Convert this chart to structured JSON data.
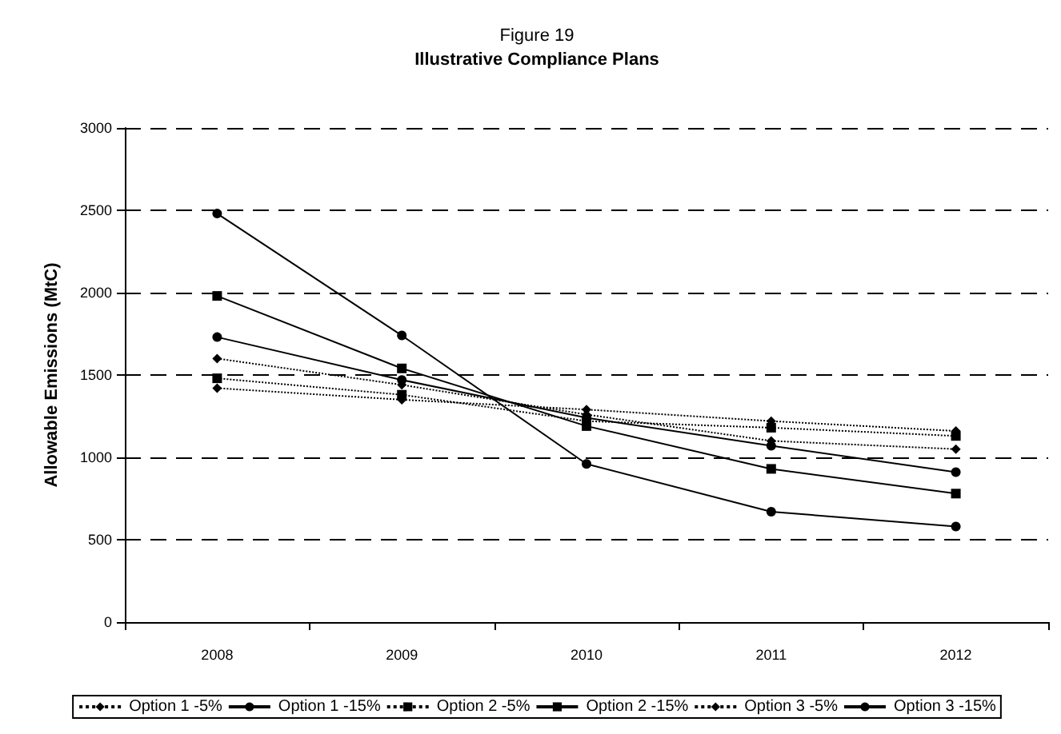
{
  "chart_data": {
    "type": "line",
    "title": "Figure 19",
    "subtitle": "Illustrative Compliance Plans",
    "ylabel": "Allowable Emissions (MtC)",
    "categories": [
      "2008",
      "2009",
      "2010",
      "2011",
      "2012"
    ],
    "series": [
      {
        "name": "Option 1 -5%",
        "color": "#000000",
        "marker": "diamond",
        "line_style": "dotted",
        "values": [
          1420,
          1350,
          1290,
          1220,
          1160
        ]
      },
      {
        "name": "Option 1 -15%",
        "color": "#000000",
        "marker": "circle",
        "line_style": "solid",
        "values": [
          1730,
          1470,
          1240,
          1070,
          910
        ]
      },
      {
        "name": "Option 2 -5%",
        "color": "#000000",
        "marker": "square",
        "line_style": "dotted",
        "values": [
          1480,
          1380,
          1220,
          1180,
          1130
        ]
      },
      {
        "name": "Option 2 -15%",
        "color": "#000000",
        "marker": "square",
        "line_style": "solid",
        "values": [
          1980,
          1540,
          1190,
          930,
          780
        ]
      },
      {
        "name": "Option 3 -5%",
        "color": "#000000",
        "marker": "diamond",
        "line_style": "dotted",
        "values": [
          1600,
          1440,
          1260,
          1100,
          1050
        ]
      },
      {
        "name": "Option 3 -15%",
        "color": "#000000",
        "marker": "circle",
        "line_style": "solid",
        "values": [
          2480,
          1740,
          960,
          670,
          580
        ]
      }
    ],
    "ylim": [
      0,
      3000
    ],
    "yticks": [
      0,
      500,
      1000,
      1500,
      2000,
      2500,
      3000
    ],
    "grid": "y",
    "legend": "bottom"
  }
}
